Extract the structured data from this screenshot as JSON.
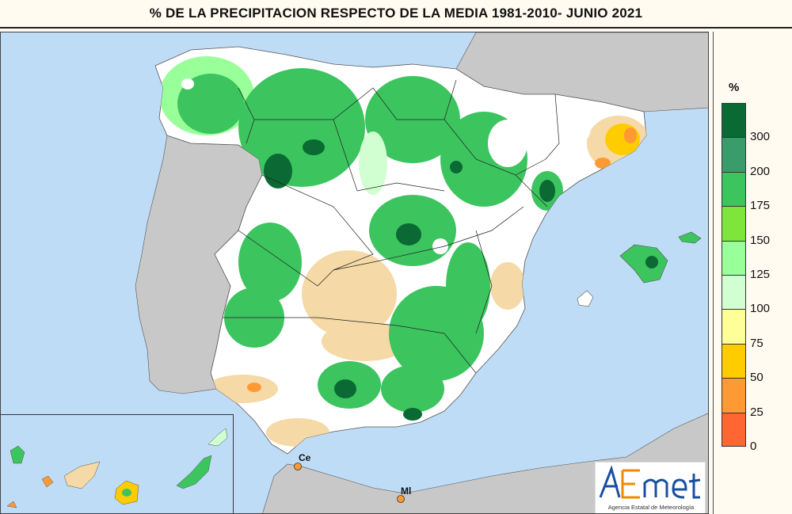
{
  "title": "% DE LA PRECIPITACION RESPECTO DE LA MEDIA 1981-2010- JUNIO 2021",
  "legend": {
    "unit": "%",
    "bins": [
      {
        "color": "#0b6a33"
      },
      {
        "color": "#3a9b6b"
      },
      {
        "color": "#3cc45f"
      },
      {
        "color": "#7ee53a"
      },
      {
        "color": "#99ff99"
      },
      {
        "color": "#d2ffd2"
      },
      {
        "color": "#ffff99"
      },
      {
        "color": "#ffcc00"
      },
      {
        "color": "#ff9933"
      },
      {
        "color": "#ff6633"
      }
    ],
    "labels": [
      "300",
      "200",
      "175",
      "150",
      "125",
      "100",
      "75",
      "50",
      "25",
      "0"
    ]
  },
  "cities": {
    "ceuta": "Ce",
    "melilla": "Ml"
  },
  "logo": {
    "wordmark": "AEmet",
    "subtitle": "Agencia Estatal de Meteorología"
  },
  "colors": {
    "sea": "#bfdcf6",
    "foreign_land": "#c8c8c8",
    "above_normal": "#3cc45f",
    "near_normal": "#ffffff",
    "below_normal": "#f5d9a6"
  }
}
